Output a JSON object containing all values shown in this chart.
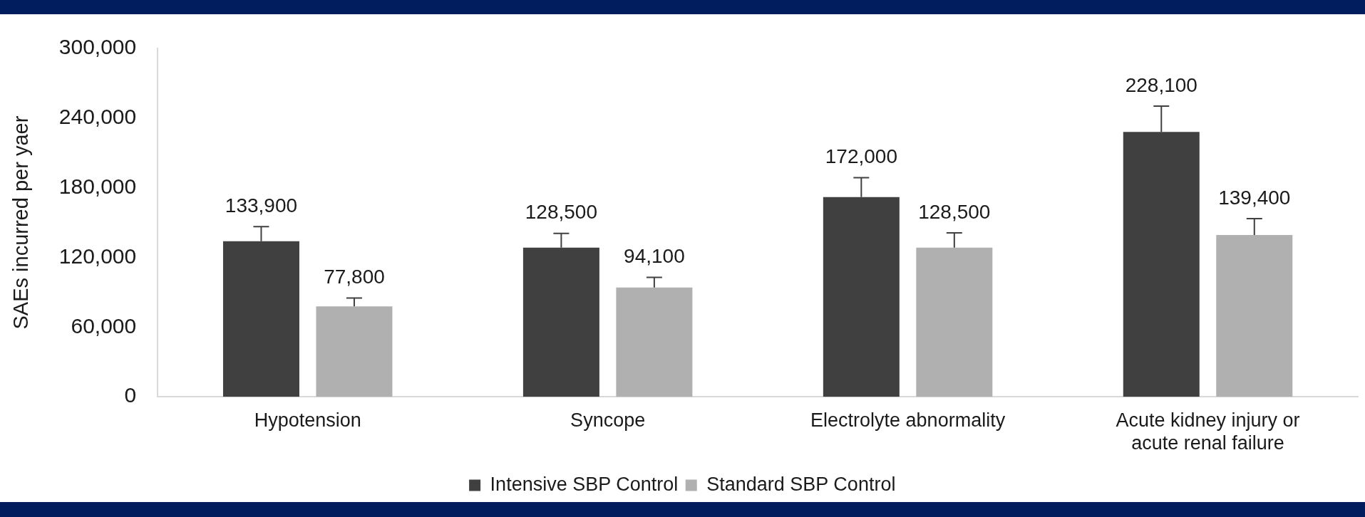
{
  "chart_data": {
    "type": "bar",
    "ylabel": "SAEs incurred per yaer",
    "categories": [
      "Hypotension",
      "Syncope",
      "Electrolyte abnormality",
      "Acute kidney injury or acute renal failure"
    ],
    "series": [
      {
        "name": "Intensive SBP Control",
        "color": "#404040",
        "values": [
          133900,
          128500,
          172000,
          228100
        ],
        "value_labels": [
          "133,900",
          "128,500",
          "172,000",
          "228,100"
        ],
        "errors": [
          [
            133900,
            146500
          ],
          [
            128500,
            140700
          ],
          [
            172000,
            188700
          ],
          [
            228100,
            250300
          ]
        ]
      },
      {
        "name": "Standard SBP Control",
        "color": "#b0b0b0",
        "values": [
          77800,
          94100,
          128500,
          139400
        ],
        "value_labels": [
          "77,800",
          "94,100",
          "128,500",
          "139,400"
        ],
        "errors": [
          [
            77800,
            85100
          ],
          [
            94100,
            102800
          ],
          [
            128500,
            141100
          ],
          [
            139400,
            153500
          ]
        ]
      }
    ],
    "ylim": [
      0,
      300000
    ],
    "yticks": [
      0,
      {
        "value": 60000,
        "label": "60,000"
      },
      {
        "value": 120000,
        "label": "120,000"
      },
      {
        "value": 180000,
        "label": "180,000"
      },
      {
        "value": 240000,
        "label": "240,000"
      },
      {
        "value": 300000,
        "label": "300,000"
      }
    ],
    "grid": false,
    "legend": "bottom"
  }
}
